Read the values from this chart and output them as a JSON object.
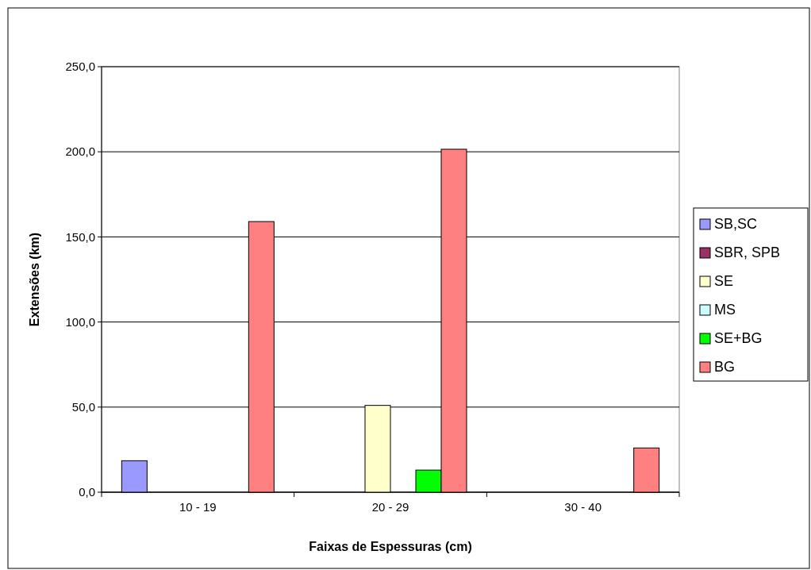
{
  "chart_data": {
    "type": "bar",
    "xlabel": "Faixas de Espessuras (cm)",
    "ylabel": "Extensões (km)",
    "categories": [
      "10 - 19",
      "20 - 29",
      "30 - 40"
    ],
    "series": [
      {
        "name": "SB,SC",
        "color": "#9999ff",
        "values": [
          18.5,
          null,
          null
        ]
      },
      {
        "name": "SBR, SPB",
        "color": "#993366",
        "values": [
          null,
          null,
          null
        ]
      },
      {
        "name": "SE",
        "color": "#ffffcc",
        "values": [
          null,
          51,
          null
        ]
      },
      {
        "name": "MS",
        "color": "#ccffff",
        "values": [
          null,
          null,
          null
        ]
      },
      {
        "name": "SE+BG",
        "color": "#00ff00",
        "values": [
          null,
          13,
          null
        ]
      },
      {
        "name": "BG",
        "color": "#ff8080",
        "values": [
          159,
          201.5,
          26
        ]
      }
    ],
    "ylim": [
      0,
      250
    ],
    "yticks": [
      {
        "value": 0,
        "label": "0,0"
      },
      {
        "value": 50,
        "label": "50,0"
      },
      {
        "value": 100,
        "label": "100,0"
      },
      {
        "value": 150,
        "label": "150,0"
      },
      {
        "value": 200,
        "label": "200,0"
      },
      {
        "value": 250,
        "label": "250,0"
      }
    ],
    "grid": "y",
    "legend": "right"
  }
}
